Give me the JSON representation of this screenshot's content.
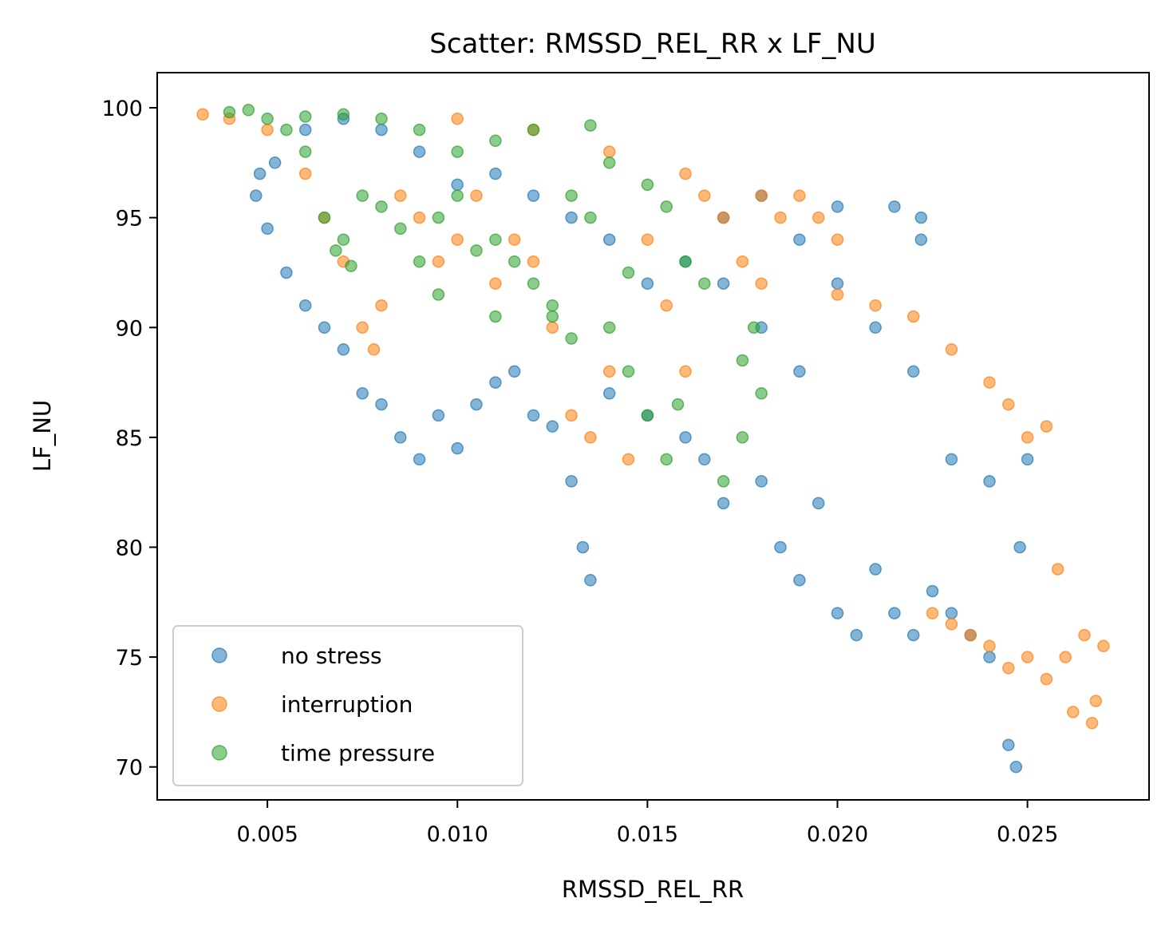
{
  "chart_data": {
    "type": "scatter",
    "title": "Scatter: RMSSD_REL_RR x LF_NU",
    "xlabel": "RMSSD_REL_RR",
    "ylabel": "LF_NU",
    "xlim": [
      0.0021,
      0.0282
    ],
    "ylim": [
      68.5,
      101.6
    ],
    "xticks": [
      0.005,
      0.01,
      0.015,
      0.02,
      0.025
    ],
    "xtick_labels": [
      "0.005",
      "0.010",
      "0.015",
      "0.020",
      "0.025"
    ],
    "yticks": [
      70,
      75,
      80,
      85,
      90,
      95,
      100
    ],
    "ytick_labels": [
      "70",
      "75",
      "80",
      "85",
      "90",
      "95",
      "100"
    ],
    "grid": false,
    "legend_position": "lower-left",
    "series": [
      {
        "name": "no stress",
        "color": "#1f77b4",
        "points": [
          [
            0.0047,
            96.0
          ],
          [
            0.005,
            94.5
          ],
          [
            0.0055,
            92.5
          ],
          [
            0.006,
            91.0
          ],
          [
            0.0065,
            90.0
          ],
          [
            0.007,
            89.0
          ],
          [
            0.0075,
            87.0
          ],
          [
            0.008,
            86.5
          ],
          [
            0.0085,
            85.0
          ],
          [
            0.009,
            84.0
          ],
          [
            0.0095,
            86.0
          ],
          [
            0.01,
            84.5
          ],
          [
            0.0105,
            86.5
          ],
          [
            0.011,
            87.5
          ],
          [
            0.0115,
            88.0
          ],
          [
            0.012,
            86.0
          ],
          [
            0.0125,
            85.5
          ],
          [
            0.013,
            83.0
          ],
          [
            0.0133,
            80.0
          ],
          [
            0.0135,
            78.5
          ],
          [
            0.014,
            87.0
          ],
          [
            0.015,
            86.0
          ],
          [
            0.016,
            85.0
          ],
          [
            0.0165,
            84.0
          ],
          [
            0.017,
            82.0
          ],
          [
            0.018,
            83.0
          ],
          [
            0.0185,
            80.0
          ],
          [
            0.019,
            78.5
          ],
          [
            0.0195,
            82.0
          ],
          [
            0.02,
            77.0
          ],
          [
            0.0205,
            76.0
          ],
          [
            0.021,
            79.0
          ],
          [
            0.0215,
            77.0
          ],
          [
            0.022,
            76.0
          ],
          [
            0.0225,
            78.0
          ],
          [
            0.023,
            77.0
          ],
          [
            0.0235,
            76.0
          ],
          [
            0.024,
            75.0
          ],
          [
            0.0245,
            71.0
          ],
          [
            0.0247,
            70.0
          ],
          [
            0.0248,
            80.0
          ],
          [
            0.021,
            90.0
          ],
          [
            0.022,
            88.0
          ],
          [
            0.02,
            92.0
          ],
          [
            0.019,
            94.0
          ],
          [
            0.018,
            96.0
          ],
          [
            0.02,
            95.5
          ],
          [
            0.0215,
            95.5
          ],
          [
            0.0222,
            95.0
          ],
          [
            0.0222,
            94.0
          ],
          [
            0.017,
            95.0
          ],
          [
            0.016,
            93.0
          ],
          [
            0.015,
            92.0
          ],
          [
            0.014,
            94.0
          ],
          [
            0.013,
            95.0
          ],
          [
            0.012,
            96.0
          ],
          [
            0.011,
            97.0
          ],
          [
            0.01,
            96.5
          ],
          [
            0.009,
            98.0
          ],
          [
            0.008,
            99.0
          ],
          [
            0.007,
            99.5
          ],
          [
            0.006,
            99.0
          ],
          [
            0.0052,
            97.5
          ],
          [
            0.0048,
            97.0
          ],
          [
            0.023,
            84.0
          ],
          [
            0.024,
            83.0
          ],
          [
            0.025,
            84.0
          ],
          [
            0.018,
            90.0
          ],
          [
            0.019,
            88.0
          ],
          [
            0.017,
            92.0
          ]
        ]
      },
      {
        "name": "interruption",
        "color": "#ff7f0e",
        "points": [
          [
            0.0033,
            99.7
          ],
          [
            0.004,
            99.5
          ],
          [
            0.005,
            99.0
          ],
          [
            0.006,
            97.0
          ],
          [
            0.0065,
            95.0
          ],
          [
            0.007,
            93.0
          ],
          [
            0.0075,
            90.0
          ],
          [
            0.0078,
            89.0
          ],
          [
            0.008,
            91.0
          ],
          [
            0.0085,
            96.0
          ],
          [
            0.009,
            95.0
          ],
          [
            0.0095,
            93.0
          ],
          [
            0.01,
            94.0
          ],
          [
            0.0105,
            96.0
          ],
          [
            0.011,
            92.0
          ],
          [
            0.0115,
            94.0
          ],
          [
            0.012,
            93.0
          ],
          [
            0.0125,
            90.0
          ],
          [
            0.013,
            86.0
          ],
          [
            0.0135,
            85.0
          ],
          [
            0.014,
            88.0
          ],
          [
            0.0145,
            84.0
          ],
          [
            0.015,
            94.0
          ],
          [
            0.0155,
            91.0
          ],
          [
            0.016,
            88.0
          ],
          [
            0.0165,
            96.0
          ],
          [
            0.017,
            95.0
          ],
          [
            0.0175,
            93.0
          ],
          [
            0.018,
            96.0
          ],
          [
            0.0185,
            95.0
          ],
          [
            0.019,
            96.0
          ],
          [
            0.0195,
            95.0
          ],
          [
            0.02,
            94.0
          ],
          [
            0.01,
            99.5
          ],
          [
            0.012,
            99.0
          ],
          [
            0.014,
            98.0
          ],
          [
            0.016,
            97.0
          ],
          [
            0.018,
            92.0
          ],
          [
            0.02,
            91.5
          ],
          [
            0.021,
            91.0
          ],
          [
            0.022,
            90.5
          ],
          [
            0.023,
            89.0
          ],
          [
            0.024,
            87.5
          ],
          [
            0.0245,
            86.5
          ],
          [
            0.025,
            85.0
          ],
          [
            0.0255,
            85.5
          ],
          [
            0.0225,
            77.0
          ],
          [
            0.023,
            76.5
          ],
          [
            0.0235,
            76.0
          ],
          [
            0.024,
            75.5
          ],
          [
            0.0245,
            74.5
          ],
          [
            0.025,
            75.0
          ],
          [
            0.0255,
            74.0
          ],
          [
            0.026,
            75.0
          ],
          [
            0.0265,
            76.0
          ],
          [
            0.0268,
            73.0
          ],
          [
            0.027,
            75.5
          ],
          [
            0.0258,
            79.0
          ],
          [
            0.0262,
            72.5
          ],
          [
            0.0267,
            72.0
          ]
        ]
      },
      {
        "name": "time pressure",
        "color": "#2ca02c",
        "points": [
          [
            0.004,
            99.8
          ],
          [
            0.0045,
            99.9
          ],
          [
            0.005,
            99.5
          ],
          [
            0.0055,
            99.0
          ],
          [
            0.006,
            98.0
          ],
          [
            0.0065,
            95.0
          ],
          [
            0.007,
            94.0
          ],
          [
            0.0075,
            96.0
          ],
          [
            0.008,
            95.5
          ],
          [
            0.0085,
            94.5
          ],
          [
            0.009,
            93.0
          ],
          [
            0.0095,
            95.0
          ],
          [
            0.01,
            96.0
          ],
          [
            0.0105,
            93.5
          ],
          [
            0.011,
            94.0
          ],
          [
            0.0115,
            93.0
          ],
          [
            0.012,
            92.0
          ],
          [
            0.0125,
            91.0
          ],
          [
            0.013,
            96.0
          ],
          [
            0.0135,
            95.0
          ],
          [
            0.014,
            90.0
          ],
          [
            0.0145,
            88.0
          ],
          [
            0.015,
            86.0
          ],
          [
            0.0155,
            84.0
          ],
          [
            0.016,
            93.0
          ],
          [
            0.0165,
            92.0
          ],
          [
            0.017,
            83.0
          ],
          [
            0.0175,
            85.0
          ],
          [
            0.018,
            87.0
          ],
          [
            0.006,
            99.6
          ],
          [
            0.007,
            99.7
          ],
          [
            0.008,
            99.5
          ],
          [
            0.009,
            99.0
          ],
          [
            0.01,
            98.0
          ],
          [
            0.011,
            98.5
          ],
          [
            0.012,
            99.0
          ],
          [
            0.0135,
            99.2
          ],
          [
            0.014,
            97.5
          ],
          [
            0.015,
            96.5
          ],
          [
            0.0155,
            95.5
          ],
          [
            0.0125,
            90.5
          ],
          [
            0.013,
            89.5
          ],
          [
            0.0175,
            88.5
          ],
          [
            0.0178,
            90.0
          ],
          [
            0.0068,
            93.5
          ],
          [
            0.0072,
            92.8
          ],
          [
            0.0145,
            92.5
          ],
          [
            0.011,
            90.5
          ],
          [
            0.0095,
            91.5
          ],
          [
            0.0158,
            86.5
          ]
        ]
      }
    ]
  }
}
